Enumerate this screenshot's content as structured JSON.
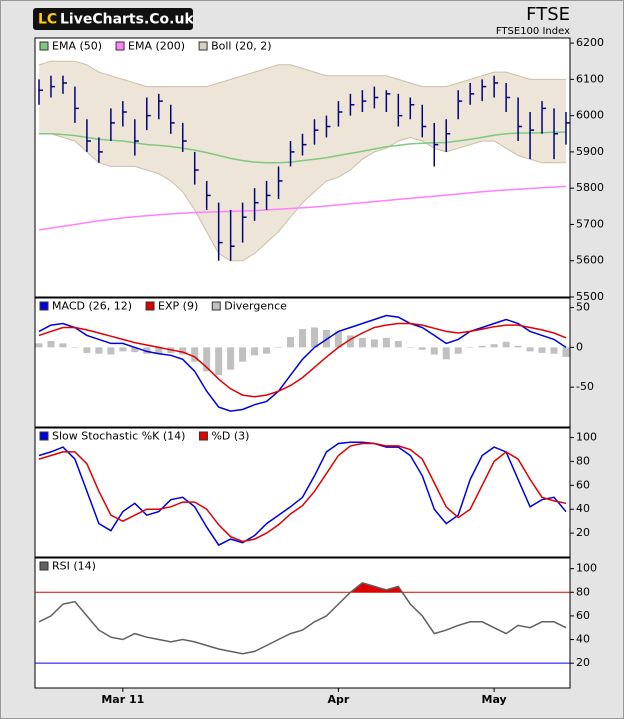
{
  "header": {
    "logo_mark": "LC",
    "logo_text": "LiveCharts.Co.uk"
  },
  "chart_data": [
    {
      "type": "ohlc",
      "title": "FTSE",
      "subtitle": "FTSE100 Index",
      "color": "#000080",
      "categories": [
        null,
        null,
        null,
        null,
        null,
        null,
        null,
        "Mar 11",
        null,
        null,
        null,
        null,
        null,
        null,
        null,
        null,
        null,
        null,
        null,
        null,
        null,
        null,
        null,
        null,
        null,
        "Apr",
        null,
        null,
        null,
        null,
        null,
        null,
        null,
        null,
        null,
        null,
        null,
        null,
        "May",
        null,
        null,
        null,
        null,
        null,
        null
      ],
      "high": [
        6100,
        6110,
        6110,
        6080,
        5990,
        5940,
        6020,
        6040,
        5990,
        6050,
        6060,
        6030,
        5980,
        5900,
        5820,
        5760,
        5740,
        5760,
        5800,
        5820,
        5860,
        5930,
        5950,
        5990,
        6000,
        6040,
        6060,
        6070,
        6080,
        6070,
        6060,
        6050,
        6030,
        5980,
        5990,
        6070,
        6090,
        6100,
        6110,
        6090,
        6050,
        6010,
        6040,
        6020,
        6010
      ],
      "low": [
        6030,
        6050,
        6060,
        5980,
        5900,
        5870,
        5930,
        5970,
        5890,
        5960,
        5990,
        5950,
        5900,
        5810,
        5740,
        5600,
        5600,
        5650,
        5710,
        5740,
        5770,
        5860,
        5890,
        5920,
        5940,
        5970,
        6000,
        6010,
        6020,
        6010,
        5970,
        5990,
        5940,
        5860,
        5900,
        5990,
        6030,
        6040,
        6050,
        6010,
        5930,
        5880,
        5950,
        5880,
        5920
      ],
      "close": [
        6070,
        6080,
        6090,
        6020,
        5930,
        5900,
        5980,
        6010,
        5930,
        6000,
        6040,
        5980,
        5930,
        5850,
        5780,
        5650,
        5640,
        5720,
        5760,
        5780,
        5820,
        5900,
        5920,
        5960,
        5970,
        6010,
        6030,
        6040,
        6050,
        6060,
        6000,
        6030,
        5970,
        5920,
        5950,
        6040,
        6060,
        6080,
        6090,
        6050,
        5970,
        5960,
        6020,
        5950,
        5980
      ],
      "series": [
        {
          "name": "EMA (50)",
          "color": "#80c880",
          "values": [
            5950,
            5950,
            5948,
            5945,
            5940,
            5935,
            5932,
            5930,
            5925,
            5920,
            5918,
            5915,
            5910,
            5905,
            5898,
            5890,
            5882,
            5876,
            5872,
            5870,
            5870,
            5872,
            5876,
            5880,
            5884,
            5890,
            5896,
            5902,
            5908,
            5914,
            5918,
            5922,
            5924,
            5925,
            5926,
            5930,
            5935,
            5940,
            5946,
            5950,
            5952,
            5952,
            5953,
            5954,
            5955
          ]
        },
        {
          "name": "EMA (200)",
          "color": "#ff80ff",
          "values": [
            5685,
            5690,
            5695,
            5700,
            5705,
            5710,
            5714,
            5718,
            5721,
            5724,
            5727,
            5729,
            5731,
            5733,
            5734,
            5735,
            5736,
            5737,
            5738,
            5740,
            5742,
            5744,
            5746,
            5748,
            5751,
            5754,
            5757,
            5760,
            5763,
            5766,
            5769,
            5772,
            5775,
            5778,
            5781,
            5784,
            5787,
            5790,
            5793,
            5795,
            5797,
            5799,
            5801,
            5803,
            5805
          ]
        },
        {
          "name": "Boll (20, 2)",
          "color": "#e6dcc8",
          "upper": [
            6140,
            6150,
            6150,
            6150,
            6140,
            6120,
            6110,
            6100,
            6090,
            6080,
            6080,
            6080,
            6080,
            6080,
            6080,
            6090,
            6100,
            6110,
            6120,
            6130,
            6140,
            6140,
            6130,
            6120,
            6110,
            6110,
            6110,
            6110,
            6110,
            6110,
            6100,
            6090,
            6080,
            6080,
            6080,
            6090,
            6100,
            6110,
            6120,
            6120,
            6110,
            6100,
            6100,
            6100,
            6100
          ],
          "lower": [
            5950,
            5950,
            5940,
            5930,
            5900,
            5870,
            5860,
            5860,
            5860,
            5850,
            5840,
            5820,
            5790,
            5740,
            5680,
            5620,
            5600,
            5600,
            5620,
            5650,
            5680,
            5720,
            5760,
            5790,
            5820,
            5830,
            5850,
            5880,
            5900,
            5910,
            5930,
            5940,
            5930,
            5910,
            5900,
            5910,
            5920,
            5930,
            5930,
            5910,
            5890,
            5880,
            5870,
            5870,
            5870
          ]
        }
      ],
      "ylim": [
        5500,
        6214
      ],
      "yticks": [
        6200,
        6100,
        6000,
        5900,
        5800,
        5700,
        5600,
        5500
      ]
    },
    {
      "type": "line",
      "series": [
        {
          "name": "MACD (26, 12)",
          "color": "#0000e0",
          "values": [
            20,
            28,
            30,
            25,
            15,
            10,
            5,
            5,
            0,
            -5,
            -8,
            -10,
            -15,
            -30,
            -55,
            -75,
            -80,
            -78,
            -72,
            -68,
            -55,
            -35,
            -15,
            0,
            10,
            20,
            25,
            30,
            35,
            40,
            38,
            30,
            25,
            15,
            5,
            10,
            20,
            25,
            30,
            35,
            30,
            20,
            15,
            10,
            0
          ]
        },
        {
          "name": "EXP (9)",
          "color": "#e00000",
          "values": [
            15,
            20,
            25,
            25,
            22,
            18,
            14,
            10,
            6,
            3,
            0,
            -3,
            -6,
            -12,
            -25,
            -40,
            -52,
            -60,
            -62,
            -60,
            -55,
            -48,
            -38,
            -25,
            -12,
            0,
            10,
            18,
            25,
            28,
            30,
            30,
            28,
            24,
            20,
            18,
            20,
            23,
            26,
            28,
            28,
            25,
            22,
            18,
            12
          ]
        },
        {
          "name": "Divergence",
          "color": "#c0c0c0",
          "style": "bar",
          "values": [
            5,
            8,
            5,
            0,
            -7,
            -8,
            -9,
            -5,
            -6,
            -8,
            -8,
            -7,
            -9,
            -18,
            -30,
            -35,
            -28,
            -18,
            -10,
            -8,
            0,
            13,
            23,
            25,
            22,
            20,
            15,
            12,
            10,
            12,
            8,
            0,
            -3,
            -9,
            -15,
            -8,
            0,
            2,
            4,
            7,
            2,
            -5,
            -7,
            -8,
            -12
          ]
        }
      ],
      "ylim": [
        -100,
        62
      ],
      "yticks": [
        50,
        0,
        -50
      ]
    },
    {
      "type": "line",
      "series": [
        {
          "name": "Slow Stochastic %K (14)",
          "color": "#0000e0",
          "values": [
            85,
            88,
            92,
            82,
            55,
            28,
            22,
            38,
            45,
            35,
            38,
            48,
            50,
            42,
            25,
            10,
            15,
            12,
            18,
            28,
            35,
            42,
            50,
            68,
            88,
            95,
            96,
            96,
            95,
            92,
            92,
            85,
            68,
            40,
            28,
            35,
            65,
            85,
            92,
            88,
            65,
            42,
            48,
            50,
            38
          ]
        },
        {
          "name": "%D (3)",
          "color": "#e00000",
          "values": [
            82,
            85,
            88,
            88,
            78,
            55,
            35,
            30,
            35,
            40,
            40,
            42,
            46,
            46,
            40,
            27,
            17,
            13,
            15,
            20,
            27,
            36,
            43,
            55,
            70,
            85,
            93,
            95,
            95,
            93,
            93,
            90,
            82,
            62,
            42,
            33,
            40,
            60,
            80,
            88,
            82,
            65,
            50,
            47,
            45
          ]
        }
      ],
      "ylim": [
        0,
        108
      ],
      "yticks": [
        100,
        80,
        60,
        40,
        20
      ]
    },
    {
      "type": "line",
      "series": [
        {
          "name": "RSI (14)",
          "color": "#606060",
          "fill_above": {
            "value": 80,
            "color": "#e00000"
          },
          "values": [
            55,
            60,
            70,
            72,
            60,
            48,
            42,
            40,
            45,
            42,
            40,
            38,
            40,
            38,
            35,
            32,
            30,
            28,
            30,
            35,
            40,
            45,
            48,
            55,
            60,
            70,
            80,
            88,
            85,
            82,
            85,
            70,
            60,
            45,
            48,
            52,
            55,
            55,
            50,
            45,
            52,
            50,
            55,
            55,
            50
          ]
        }
      ],
      "hlines": [
        {
          "value": 80,
          "color": "#e00000"
        },
        {
          "value": 20,
          "color": "#0000ff"
        }
      ],
      "ylim": [
        -1,
        109
      ],
      "yticks": [
        100,
        80,
        60,
        40,
        20
      ]
    }
  ]
}
